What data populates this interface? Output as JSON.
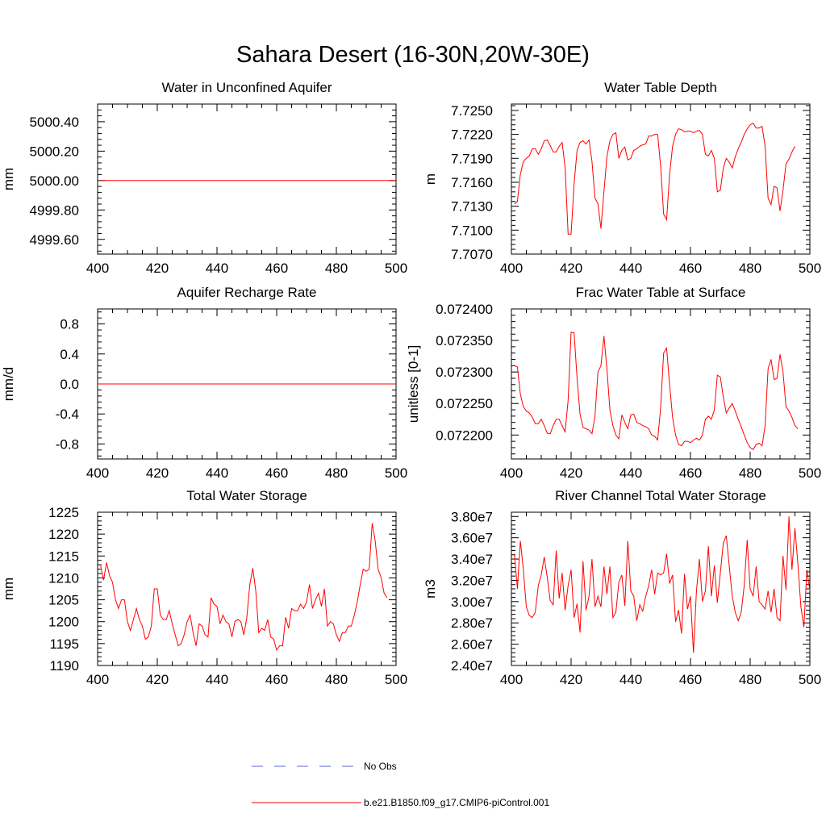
{
  "title": "Sahara Desert (16-30N,20W-30E)",
  "legend": {
    "items": [
      {
        "label": "No Obs",
        "color": "#5566cc",
        "dash": true
      },
      {
        "label": "b.e21.B1850.f09_g17.CMIP6-piControl.001",
        "color": "#ff0000",
        "dash": false
      }
    ]
  },
  "chart_data": [
    {
      "type": "line",
      "title": "Water in Unconfined Aquifer",
      "ylabel": "mm",
      "xlabel": "",
      "xlim": [
        400,
        500
      ],
      "ylim": [
        4999.5,
        5000.52
      ],
      "xticks": [
        400,
        420,
        440,
        460,
        480,
        500
      ],
      "xtick_labels": [
        "400",
        "420",
        "440",
        "460",
        "480",
        "500"
      ],
      "yticks": [
        4999.6,
        4999.8,
        5000.0,
        5000.2,
        5000.4
      ],
      "ytick_labels": [
        "4999.60",
        "4999.80",
        "5000.00",
        "5000.20",
        "5000.40"
      ],
      "series": [
        {
          "color": "#ff0000",
          "x_start": 401,
          "x_step": 1,
          "values": [
            5000.0,
            5000.0
          ]
        }
      ]
    },
    {
      "type": "line",
      "title": "Water Table Depth",
      "ylabel": "m",
      "xlabel": "",
      "xlim": [
        400,
        500
      ],
      "ylim": [
        7.707,
        7.7258
      ],
      "xticks": [
        400,
        420,
        440,
        460,
        480,
        500
      ],
      "xtick_labels": [
        "400",
        "420",
        "440",
        "460",
        "480",
        "500"
      ],
      "yticks": [
        7.707,
        7.71,
        7.713,
        7.716,
        7.719,
        7.722,
        7.725
      ],
      "ytick_labels": [
        "7.7070",
        "7.7100",
        "7.7130",
        "7.7160",
        "7.7190",
        "7.7220",
        "7.7250"
      ],
      "series": [
        {
          "color": "#ff0000",
          "x_start": 401,
          "x_step": 1,
          "values": [
            7.7133,
            7.7136,
            7.717,
            7.7186,
            7.719,
            7.7193,
            7.7202,
            7.7202,
            7.7195,
            7.7202,
            7.7212,
            7.7213,
            7.7206,
            7.7198,
            7.7198,
            7.7205,
            7.721,
            7.7178,
            7.7095,
            7.7095,
            7.7158,
            7.72,
            7.721,
            7.7212,
            7.7208,
            7.7213,
            7.7186,
            7.714,
            7.7133,
            7.7102,
            7.7148,
            7.7192,
            7.7212,
            7.722,
            7.7222,
            7.719,
            7.72,
            7.7204,
            7.7188,
            7.719,
            7.72,
            7.7202,
            7.7205,
            7.7207,
            7.7208,
            7.7218,
            7.7218,
            7.722,
            7.722,
            7.718,
            7.712,
            7.7113,
            7.717,
            7.7205,
            7.722,
            7.7227,
            7.7226,
            7.7223,
            7.7224,
            7.7224,
            7.7222,
            7.7224,
            7.7225,
            7.722,
            7.7195,
            7.7193,
            7.72,
            7.719,
            7.7148,
            7.715,
            7.7178,
            7.719,
            7.7185,
            7.7178,
            7.7192,
            7.7202,
            7.721,
            7.722,
            7.7227,
            7.7232,
            7.7234,
            7.7228,
            7.7228,
            7.723,
            7.7205,
            7.714,
            7.7132,
            7.7155,
            7.7153,
            7.7124,
            7.715,
            7.7183,
            7.7189,
            7.7198,
            7.7205
          ]
        }
      ]
    },
    {
      "type": "line",
      "title": "Aquifer Recharge Rate",
      "ylabel": "mm/d",
      "xlabel": "",
      "xlim": [
        400,
        500
      ],
      "ylim": [
        -1.0,
        1.0
      ],
      "xticks": [
        400,
        420,
        440,
        460,
        480,
        500
      ],
      "xtick_labels": [
        "400",
        "420",
        "440",
        "460",
        "480",
        "500"
      ],
      "yticks": [
        -0.8,
        -0.4,
        0.0,
        0.4,
        0.8
      ],
      "ytick_labels": [
        "-0.8",
        "-0.4",
        "0.0",
        "0.4",
        "0.8"
      ],
      "series": [
        {
          "color": "#ff0000",
          "x_start": 400,
          "x_step": 100,
          "values": [
            0.0,
            0.0
          ]
        }
      ]
    },
    {
      "type": "line",
      "title": "Frac Water Table at Surface",
      "ylabel": "unitless [0-1]",
      "xlabel": "",
      "xlim": [
        400,
        500
      ],
      "ylim": [
        0.072162,
        0.0724
      ],
      "xticks": [
        400,
        420,
        440,
        460,
        480,
        500
      ],
      "xtick_labels": [
        "400",
        "420",
        "440",
        "460",
        "480",
        "500"
      ],
      "yticks": [
        0.0722,
        0.07225,
        0.0723,
        0.07235,
        0.0724
      ],
      "ytick_labels": [
        "0.072200",
        "0.072250",
        "0.072300",
        "0.072350",
        "0.072400"
      ],
      "series": [
        {
          "color": "#ff0000",
          "x_start": 401,
          "x_step": 1,
          "values": [
            0.07231,
            0.072308,
            0.072265,
            0.072245,
            0.072238,
            0.072235,
            0.072228,
            0.072218,
            0.072218,
            0.072225,
            0.072215,
            0.072203,
            0.072202,
            0.072215,
            0.072225,
            0.072225,
            0.072215,
            0.072205,
            0.072255,
            0.072363,
            0.072362,
            0.07229,
            0.072233,
            0.072212,
            0.07221,
            0.072208,
            0.072202,
            0.07223,
            0.0723,
            0.07231,
            0.072357,
            0.072305,
            0.07224,
            0.072215,
            0.0722,
            0.072194,
            0.072232,
            0.07222,
            0.07221,
            0.072232,
            0.072233,
            0.07222,
            0.072218,
            0.072215,
            0.072213,
            0.07221,
            0.0722,
            0.072198,
            0.072192,
            0.072243,
            0.07233,
            0.072338,
            0.07228,
            0.072228,
            0.0722,
            0.072185,
            0.072183,
            0.07219,
            0.07219,
            0.072188,
            0.072192,
            0.072195,
            0.072192,
            0.0722,
            0.072225,
            0.07223,
            0.072225,
            0.07224,
            0.072295,
            0.072292,
            0.07226,
            0.072235,
            0.072243,
            0.07225,
            0.072238,
            0.072225,
            0.072213,
            0.0722,
            0.072188,
            0.07218,
            0.072177,
            0.072185,
            0.072187,
            0.072183,
            0.072215,
            0.072305,
            0.07232,
            0.072288,
            0.07229,
            0.072328,
            0.0723,
            0.072245,
            0.072238,
            0.072228,
            0.072215,
            0.07221
          ]
        }
      ]
    },
    {
      "type": "line",
      "title": "Total Water Storage",
      "ylabel": "mm",
      "xlabel": "",
      "xlim": [
        400,
        500
      ],
      "ylim": [
        1190,
        1225
      ],
      "xticks": [
        400,
        420,
        440,
        460,
        480,
        500
      ],
      "xtick_labels": [
        "400",
        "420",
        "440",
        "460",
        "480",
        "500"
      ],
      "yticks": [
        1190,
        1195,
        1200,
        1205,
        1210,
        1215,
        1220,
        1225
      ],
      "ytick_labels": [
        "1190",
        "1195",
        "1200",
        "1205",
        "1210",
        "1215",
        "1220",
        "1225"
      ],
      "series": [
        {
          "color": "#ff0000",
          "x_start": 401,
          "x_step": 1,
          "values": [
            1212.8,
            1209.5,
            1213.5,
            1210.5,
            1209.0,
            1205.0,
            1203.0,
            1205.0,
            1205.0,
            1200.0,
            1198.0,
            1200.5,
            1203.0,
            1200.5,
            1199.0,
            1196.0,
            1196.5,
            1199.0,
            1207.5,
            1207.5,
            1201.5,
            1200.5,
            1200.5,
            1202.5,
            1199.5,
            1197.0,
            1194.5,
            1195.0,
            1197.0,
            1200.0,
            1201.5,
            1197.5,
            1194.5,
            1199.5,
            1199.0,
            1197.0,
            1196.5,
            1205.5,
            1204.0,
            1203.5,
            1199.5,
            1201.5,
            1200.0,
            1199.5,
            1196.5,
            1200.0,
            1200.5,
            1200.0,
            1197.0,
            1201.0,
            1208.5,
            1212.2,
            1207.0,
            1197.5,
            1198.5,
            1198.0,
            1200.5,
            1196.5,
            1196.0,
            1193.5,
            1194.5,
            1194.5,
            1201.0,
            1198.5,
            1203.0,
            1202.5,
            1202.5,
            1204.0,
            1203.0,
            1204.5,
            1208.5,
            1203.0,
            1205.0,
            1206.5,
            1203.5,
            1207.5,
            1199.0,
            1200.0,
            1199.5,
            1197.0,
            1195.5,
            1197.5,
            1197.5,
            1199.0,
            1199.0,
            1201.5,
            1204.5,
            1208.5,
            1212.0,
            1211.5,
            1212.0,
            1222.5,
            1218.5,
            1212.0,
            1210.0,
            1206.5,
            1205.5
          ]
        }
      ]
    },
    {
      "type": "line",
      "title": "River Channel Total Water Storage",
      "ylabel": "m3",
      "xlabel": "",
      "xlim": [
        400,
        500
      ],
      "ylim": [
        24000000,
        38400000
      ],
      "xticks": [
        400,
        420,
        440,
        460,
        480,
        500
      ],
      "xtick_labels": [
        "400",
        "420",
        "440",
        "460",
        "480",
        "500"
      ],
      "yticks": [
        24000000,
        26000000,
        28000000,
        30000000,
        32000000,
        34000000,
        36000000,
        38000000
      ],
      "ytick_labels": [
        "2.40e7",
        "2.60e7",
        "2.80e7",
        "3.00e7",
        "3.20e7",
        "3.40e7",
        "3.60e7",
        "3.80e7"
      ],
      "series": [
        {
          "color": "#ff0000",
          "x_start": 401,
          "x_step": 1,
          "values": [
            34500000,
            31200000,
            35700000,
            33000000,
            29500000,
            28700000,
            28500000,
            29000000,
            31500000,
            32500000,
            34200000,
            32300000,
            30100000,
            29700000,
            34800000,
            30300000,
            32700000,
            29200000,
            31500000,
            33000000,
            28500000,
            29800000,
            27100000,
            33800000,
            29200000,
            30500000,
            34000000,
            29500000,
            30500000,
            29500000,
            33300000,
            30700000,
            33300000,
            28500000,
            29000000,
            31800000,
            32500000,
            29600000,
            35700000,
            31000000,
            30500000,
            28200000,
            29700000,
            29100000,
            30500000,
            31500000,
            33000000,
            30700000,
            32700000,
            32500000,
            32700000,
            34500000,
            31700000,
            32500000,
            28100000,
            29200000,
            27000000,
            32600000,
            29300000,
            30500000,
            25200000,
            31000000,
            34000000,
            30000000,
            31000000,
            35200000,
            30500000,
            33400000,
            29900000,
            32700000,
            35500000,
            36200000,
            33300000,
            30500000,
            29000000,
            28200000,
            29000000,
            31500000,
            35800000,
            31200000,
            30500000,
            33300000,
            30000000,
            29700000,
            29300000,
            31000000,
            29000000,
            31200000,
            28500000,
            28200000,
            34300000,
            31100000,
            38000000,
            33000000,
            36900000,
            33500000,
            29500000,
            27600000,
            33000000,
            31000000
          ]
        }
      ]
    }
  ]
}
